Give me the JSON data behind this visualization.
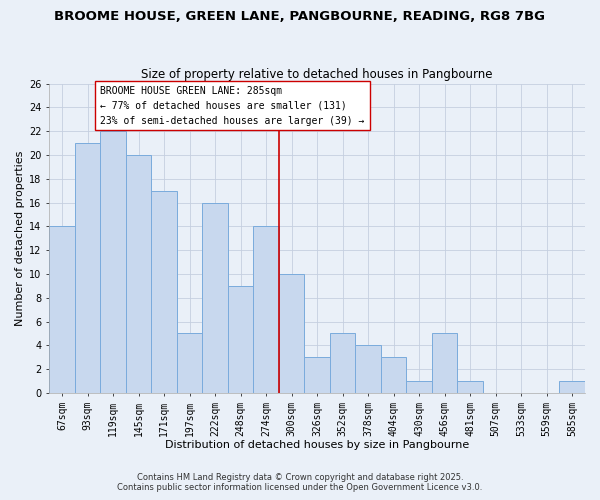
{
  "title": "BROOME HOUSE, GREEN LANE, PANGBOURNE, READING, RG8 7BG",
  "subtitle": "Size of property relative to detached houses in Pangbourne",
  "xlabel": "Distribution of detached houses by size in Pangbourne",
  "ylabel": "Number of detached properties",
  "bar_labels": [
    "67sqm",
    "93sqm",
    "119sqm",
    "145sqm",
    "171sqm",
    "197sqm",
    "222sqm",
    "248sqm",
    "274sqm",
    "300sqm",
    "326sqm",
    "352sqm",
    "378sqm",
    "404sqm",
    "430sqm",
    "456sqm",
    "481sqm",
    "507sqm",
    "533sqm",
    "559sqm",
    "585sqm"
  ],
  "bar_values": [
    14,
    21,
    22,
    20,
    17,
    5,
    16,
    9,
    14,
    10,
    3,
    5,
    4,
    3,
    1,
    5,
    1,
    0,
    0,
    0,
    1
  ],
  "bar_color": "#c8d8ee",
  "bar_edgecolor": "#7aabdc",
  "grid_color": "#c5cfe0",
  "background_color": "#eaf0f8",
  "vline_x_index": 8.5,
  "vline_color": "#cc0000",
  "annotation_line1": "BROOME HOUSE GREEN LANE: 285sqm",
  "annotation_line2": "← 77% of detached houses are smaller (131)",
  "annotation_line3": "23% of semi-detached houses are larger (39) →",
  "footer_line1": "Contains HM Land Registry data © Crown copyright and database right 2025.",
  "footer_line2": "Contains public sector information licensed under the Open Government Licence v3.0.",
  "ylim": [
    0,
    26
  ],
  "title_fontsize": 9.5,
  "subtitle_fontsize": 8.5,
  "axis_label_fontsize": 8,
  "tick_fontsize": 7,
  "annotation_fontsize": 7,
  "footer_fontsize": 6
}
